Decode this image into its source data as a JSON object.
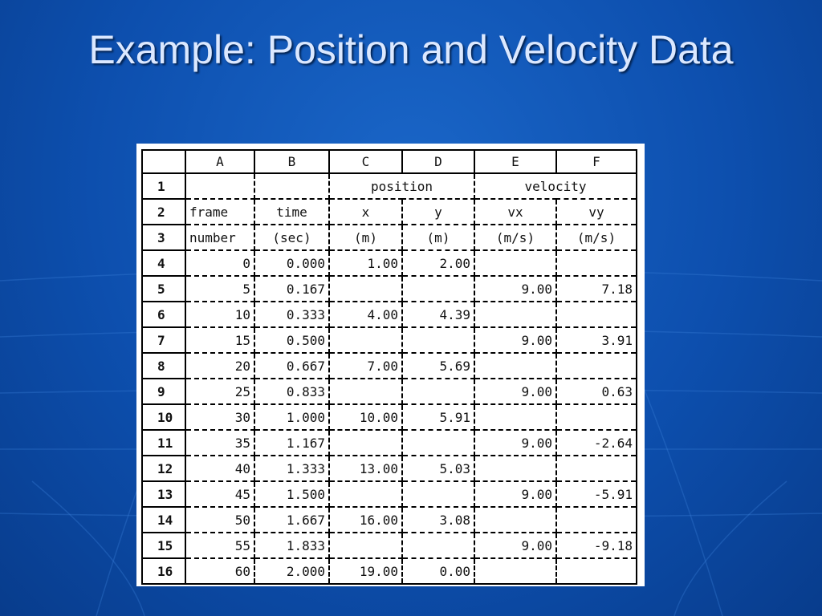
{
  "title": "Example: Position and Velocity Data",
  "table": {
    "columns": [
      "A",
      "B",
      "C",
      "D",
      "E",
      "F"
    ],
    "rows": [
      {
        "number": "1",
        "cells": [
          null,
          null,
          "position",
          "velocity"
        ]
      },
      {
        "number": "2",
        "cells": [
          "frame",
          "time",
          "x",
          "y",
          "vx",
          "vy"
        ]
      },
      {
        "number": "3",
        "cells": [
          "number",
          "(sec)",
          "(m)",
          "(m)",
          "(m/s)",
          "(m/s)"
        ]
      },
      {
        "number": "4",
        "cells": [
          "0",
          "0.000",
          "1.00",
          "2.00",
          null,
          null
        ]
      },
      {
        "number": "5",
        "cells": [
          "5",
          "0.167",
          null,
          null,
          "9.00",
          "7.18"
        ]
      },
      {
        "number": "6",
        "cells": [
          "10",
          "0.333",
          "4.00",
          "4.39",
          null,
          null
        ]
      },
      {
        "number": "7",
        "cells": [
          "15",
          "0.500",
          null,
          null,
          "9.00",
          "3.91"
        ]
      },
      {
        "number": "8",
        "cells": [
          "20",
          "0.667",
          "7.00",
          "5.69",
          null,
          null
        ]
      },
      {
        "number": "9",
        "cells": [
          "25",
          "0.833",
          null,
          null,
          "9.00",
          "0.63"
        ]
      },
      {
        "number": "10",
        "cells": [
          "30",
          "1.000",
          "10.00",
          "5.91",
          null,
          null
        ]
      },
      {
        "number": "11",
        "cells": [
          "35",
          "1.167",
          null,
          null,
          "9.00",
          "-2.64"
        ]
      },
      {
        "number": "12",
        "cells": [
          "40",
          "1.333",
          "13.00",
          "5.03",
          null,
          null
        ]
      },
      {
        "number": "13",
        "cells": [
          "45",
          "1.500",
          null,
          null,
          "9.00",
          "-5.91"
        ]
      },
      {
        "number": "14",
        "cells": [
          "50",
          "1.667",
          "16.00",
          "3.08",
          null,
          null
        ]
      },
      {
        "number": "15",
        "cells": [
          "55",
          "1.833",
          null,
          null,
          "9.00",
          "-9.18"
        ]
      },
      {
        "number": "16",
        "cells": [
          "60",
          "2.000",
          "19.00",
          "0.00",
          null,
          null
        ]
      }
    ]
  }
}
